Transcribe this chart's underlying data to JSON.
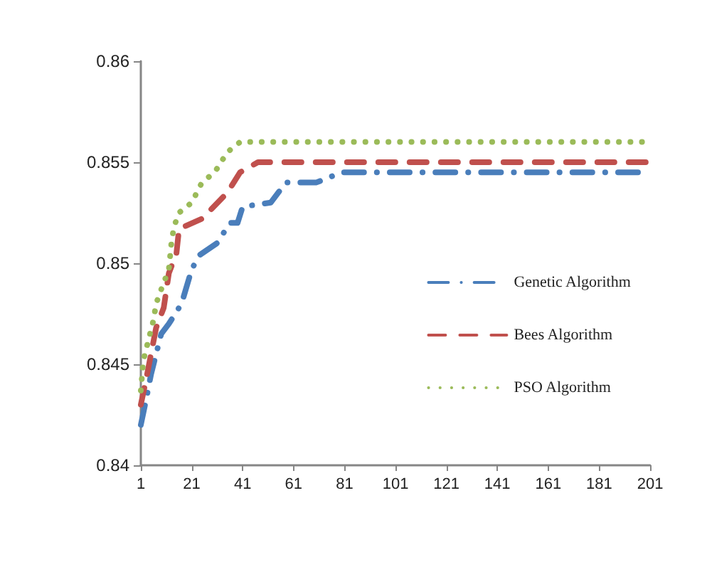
{
  "chart_data": {
    "type": "line",
    "xlim": [
      1,
      201
    ],
    "xticks": [
      1,
      21,
      41,
      61,
      81,
      101,
      121,
      141,
      161,
      181,
      201
    ],
    "ylim": [
      0.84,
      0.86
    ],
    "yticks": [
      0.84,
      0.845,
      0.85,
      0.855,
      0.86
    ],
    "grid": false,
    "legend": "right",
    "marker": "none",
    "series": [
      {
        "name": "Genetic Algorithm",
        "color": "#4a7ebb",
        "line_style": "dashdot",
        "x": [
          1,
          3,
          5,
          9,
          12,
          17,
          21,
          24,
          31,
          36,
          39,
          41,
          52,
          58,
          70,
          80,
          201
        ],
        "values": [
          0.842,
          0.8432,
          0.8445,
          0.8465,
          0.847,
          0.848,
          0.8497,
          0.8504,
          0.851,
          0.852,
          0.852,
          0.8528,
          0.853,
          0.854,
          0.854,
          0.8545,
          0.8545
        ]
      },
      {
        "name": "Bees Algorithm",
        "color": "#c0504d",
        "line_style": "dashed",
        "x": [
          1,
          3,
          5,
          7,
          10,
          12,
          15,
          16,
          25,
          35,
          40,
          47,
          201
        ],
        "values": [
          0.843,
          0.8442,
          0.8455,
          0.8468,
          0.8478,
          0.8495,
          0.8505,
          0.8517,
          0.8522,
          0.8535,
          0.8545,
          0.855,
          0.855
        ]
      },
      {
        "name": "PSO Algorithm",
        "color": "#9bbb59",
        "line_style": "dotted",
        "x": [
          1,
          2,
          4,
          6,
          7,
          9,
          12,
          13,
          14,
          16,
          21,
          25,
          30,
          35,
          40,
          201
        ],
        "values": [
          0.8437,
          0.8452,
          0.8462,
          0.8472,
          0.848,
          0.8487,
          0.8497,
          0.851,
          0.8518,
          0.8525,
          0.853,
          0.854,
          0.8545,
          0.8555,
          0.856,
          0.856
        ]
      }
    ]
  }
}
